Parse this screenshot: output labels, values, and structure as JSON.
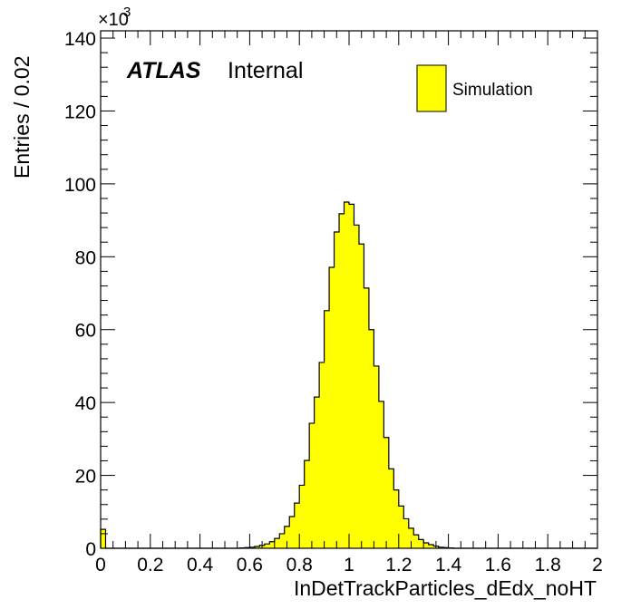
{
  "chart_data": {
    "type": "histogram",
    "xlabel": "InDetTrackParticles_dEdx_noHT",
    "ylabel": "Entries / 0.02",
    "y_multiplier_text": "×10",
    "y_multiplier_exp": "3",
    "xlim": [
      0,
      2
    ],
    "ylim": [
      0,
      142
    ],
    "x_ticks": [
      "0",
      "0.2",
      "0.4",
      "0.6",
      "0.8",
      "1",
      "1.2",
      "1.4",
      "1.6",
      "1.8",
      "2"
    ],
    "y_ticks": [
      "0",
      "20",
      "40",
      "60",
      "80",
      "100",
      "120",
      "140"
    ],
    "bin_width": 0.02,
    "bin_edges_start": 0,
    "values": [
      5.2,
      0,
      0,
      0,
      0,
      0,
      0,
      0,
      0,
      0,
      0,
      0,
      0,
      0,
      0,
      0,
      0,
      0,
      0,
      0,
      0,
      0,
      0,
      0,
      0,
      0,
      0,
      0,
      0.1,
      0.2,
      0.3,
      0.5,
      0.8,
      1.2,
      1.8,
      2.7,
      4.0,
      6.0,
      8.7,
      12.4,
      17.3,
      24.1,
      34.3,
      41.5,
      51.0,
      65.2,
      77.1,
      86.8,
      91.8,
      95.0,
      94.4,
      88.7,
      83.5,
      71.4,
      60.0,
      50.0,
      40.3,
      30.4,
      21.8,
      16.0,
      11.6,
      8.1,
      5.5,
      3.7,
      2.4,
      1.5,
      1.0,
      0.6,
      0.3,
      0.2,
      0.1,
      0,
      0,
      0,
      0,
      0,
      0,
      0,
      0,
      0,
      0,
      0,
      0,
      0,
      0,
      0,
      0,
      0,
      0,
      0,
      0,
      0,
      0,
      0,
      0,
      0,
      0,
      0,
      0,
      0
    ],
    "fill_color": "#ffff00",
    "line_color": "#000000",
    "legend": {
      "label": "Simulation",
      "position": "top-right"
    },
    "atlas_label": "ATLAS",
    "status_label": "Internal"
  }
}
